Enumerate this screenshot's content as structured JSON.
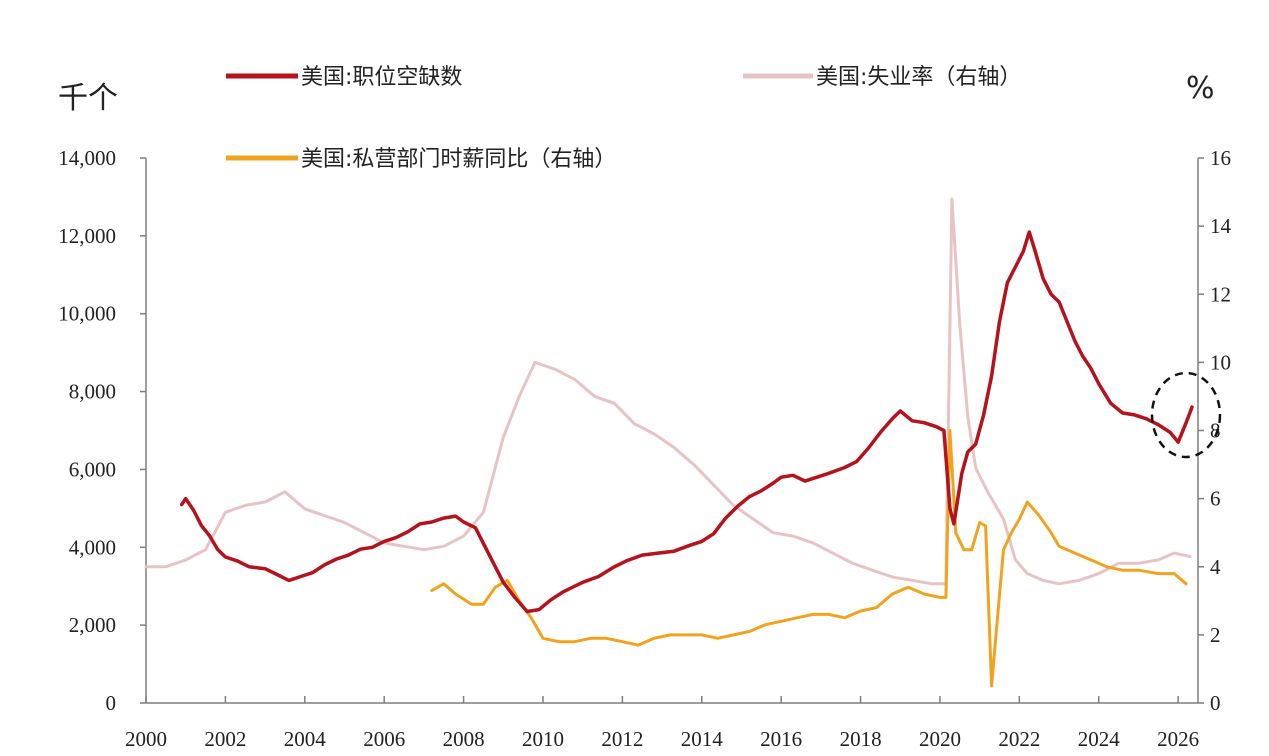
{
  "units": {
    "left": "千个",
    "right": "%"
  },
  "colors": {
    "job_openings": "#b5121b",
    "unemployment": "#e8c3c6",
    "wages": "#f2a31c",
    "axis": "#7f7f7f",
    "annotation": "#111111"
  },
  "chart_data": {
    "type": "line",
    "title": "",
    "xlabel": "",
    "ylabel_left": "千个",
    "ylabel_right": "%",
    "xlim": [
      2000,
      2026.5
    ],
    "ylim_left": [
      0,
      14000
    ],
    "ylim_right": [
      0,
      16
    ],
    "x_ticks": [
      "2000",
      "2002",
      "2004",
      "2006",
      "2008",
      "2010",
      "2012",
      "2014",
      "2016",
      "2018",
      "2020",
      "2022",
      "2024",
      "2026"
    ],
    "y_left_ticks": [
      "0",
      "2,000",
      "4,000",
      "6,000",
      "8,000",
      "10,000",
      "12,000",
      "14,000"
    ],
    "y_right_ticks": [
      "0",
      "2",
      "4",
      "6",
      "8",
      "10",
      "12",
      "14",
      "16"
    ],
    "grid": false,
    "legend_position": "top",
    "annotation": "dashed ellipse highlighting 2025-2026 job openings",
    "series": [
      {
        "name": "美国:职位空缺数",
        "axis": "left",
        "color": "#b5121b",
        "points": [
          [
            2000.9,
            5100
          ],
          [
            2001.0,
            5250
          ],
          [
            2001.2,
            4950
          ],
          [
            2001.4,
            4550
          ],
          [
            2001.6,
            4300
          ],
          [
            2001.8,
            3950
          ],
          [
            2002.0,
            3750
          ],
          [
            2002.3,
            3650
          ],
          [
            2002.6,
            3500
          ],
          [
            2003.0,
            3450
          ],
          [
            2003.3,
            3300
          ],
          [
            2003.6,
            3150
          ],
          [
            2003.9,
            3250
          ],
          [
            2004.2,
            3350
          ],
          [
            2004.5,
            3550
          ],
          [
            2004.8,
            3700
          ],
          [
            2005.1,
            3800
          ],
          [
            2005.4,
            3950
          ],
          [
            2005.7,
            4000
          ],
          [
            2006.0,
            4150
          ],
          [
            2006.3,
            4250
          ],
          [
            2006.6,
            4400
          ],
          [
            2006.9,
            4600
          ],
          [
            2007.2,
            4650
          ],
          [
            2007.5,
            4750
          ],
          [
            2007.8,
            4800
          ],
          [
            2008.0,
            4650
          ],
          [
            2008.3,
            4500
          ],
          [
            2008.5,
            4100
          ],
          [
            2008.8,
            3500
          ],
          [
            2009.0,
            3100
          ],
          [
            2009.3,
            2700
          ],
          [
            2009.6,
            2350
          ],
          [
            2009.9,
            2400
          ],
          [
            2010.2,
            2650
          ],
          [
            2010.5,
            2850
          ],
          [
            2010.8,
            3000
          ],
          [
            2011.0,
            3100
          ],
          [
            2011.4,
            3250
          ],
          [
            2011.8,
            3500
          ],
          [
            2012.1,
            3650
          ],
          [
            2012.5,
            3800
          ],
          [
            2012.9,
            3850
          ],
          [
            2013.3,
            3900
          ],
          [
            2013.7,
            4050
          ],
          [
            2014.0,
            4150
          ],
          [
            2014.3,
            4350
          ],
          [
            2014.6,
            4750
          ],
          [
            2014.9,
            5050
          ],
          [
            2015.2,
            5300
          ],
          [
            2015.5,
            5450
          ],
          [
            2015.8,
            5650
          ],
          [
            2016.0,
            5800
          ],
          [
            2016.3,
            5850
          ],
          [
            2016.6,
            5700
          ],
          [
            2016.9,
            5800
          ],
          [
            2017.2,
            5900
          ],
          [
            2017.6,
            6050
          ],
          [
            2017.9,
            6200
          ],
          [
            2018.2,
            6550
          ],
          [
            2018.5,
            6950
          ],
          [
            2018.8,
            7300
          ],
          [
            2019.0,
            7500
          ],
          [
            2019.3,
            7250
          ],
          [
            2019.6,
            7200
          ],
          [
            2019.9,
            7100
          ],
          [
            2020.1,
            7000
          ],
          [
            2020.25,
            5000
          ],
          [
            2020.35,
            4600
          ],
          [
            2020.55,
            5900
          ],
          [
            2020.7,
            6450
          ],
          [
            2020.9,
            6650
          ],
          [
            2021.1,
            7400
          ],
          [
            2021.3,
            8400
          ],
          [
            2021.5,
            9800
          ],
          [
            2021.7,
            10800
          ],
          [
            2021.9,
            11200
          ],
          [
            2022.1,
            11600
          ],
          [
            2022.25,
            12100
          ],
          [
            2022.4,
            11600
          ],
          [
            2022.6,
            10900
          ],
          [
            2022.8,
            10500
          ],
          [
            2023.0,
            10300
          ],
          [
            2023.2,
            9800
          ],
          [
            2023.4,
            9300
          ],
          [
            2023.6,
            8900
          ],
          [
            2023.8,
            8600
          ],
          [
            2024.0,
            8200
          ],
          [
            2024.3,
            7700
          ],
          [
            2024.6,
            7450
          ],
          [
            2024.9,
            7400
          ],
          [
            2025.2,
            7300
          ],
          [
            2025.5,
            7150
          ],
          [
            2025.8,
            6950
          ],
          [
            2026.0,
            6700
          ],
          [
            2026.2,
            7200
          ],
          [
            2026.35,
            7600
          ]
        ]
      },
      {
        "name": "美国:失业率（右轴）",
        "axis": "right",
        "color": "#e8c3c6",
        "points": [
          [
            2000.0,
            4.0
          ],
          [
            2000.5,
            4.0
          ],
          [
            2001.0,
            4.2
          ],
          [
            2001.5,
            4.5
          ],
          [
            2002.0,
            5.6
          ],
          [
            2002.5,
            5.8
          ],
          [
            2003.0,
            5.9
          ],
          [
            2003.5,
            6.2
          ],
          [
            2004.0,
            5.7
          ],
          [
            2004.5,
            5.5
          ],
          [
            2005.0,
            5.3
          ],
          [
            2005.5,
            5.0
          ],
          [
            2006.0,
            4.7
          ],
          [
            2006.5,
            4.6
          ],
          [
            2007.0,
            4.5
          ],
          [
            2007.5,
            4.6
          ],
          [
            2008.0,
            4.9
          ],
          [
            2008.5,
            5.6
          ],
          [
            2009.0,
            7.8
          ],
          [
            2009.4,
            9.0
          ],
          [
            2009.8,
            10.0
          ],
          [
            2010.3,
            9.8
          ],
          [
            2010.8,
            9.5
          ],
          [
            2011.3,
            9.0
          ],
          [
            2011.8,
            8.8
          ],
          [
            2012.3,
            8.2
          ],
          [
            2012.8,
            7.9
          ],
          [
            2013.3,
            7.5
          ],
          [
            2013.8,
            7.0
          ],
          [
            2014.3,
            6.4
          ],
          [
            2014.8,
            5.8
          ],
          [
            2015.3,
            5.4
          ],
          [
            2015.8,
            5.0
          ],
          [
            2016.3,
            4.9
          ],
          [
            2016.8,
            4.7
          ],
          [
            2017.3,
            4.4
          ],
          [
            2017.8,
            4.1
          ],
          [
            2018.3,
            3.9
          ],
          [
            2018.8,
            3.7
          ],
          [
            2019.3,
            3.6
          ],
          [
            2019.8,
            3.5
          ],
          [
            2020.15,
            3.5
          ],
          [
            2020.3,
            14.8
          ],
          [
            2020.5,
            11.1
          ],
          [
            2020.7,
            8.4
          ],
          [
            2020.9,
            6.9
          ],
          [
            2021.2,
            6.2
          ],
          [
            2021.6,
            5.4
          ],
          [
            2021.9,
            4.2
          ],
          [
            2022.2,
            3.8
          ],
          [
            2022.6,
            3.6
          ],
          [
            2023.0,
            3.5
          ],
          [
            2023.5,
            3.6
          ],
          [
            2024.0,
            3.8
          ],
          [
            2024.5,
            4.1
          ],
          [
            2025.0,
            4.1
          ],
          [
            2025.5,
            4.2
          ],
          [
            2025.9,
            4.4
          ],
          [
            2026.3,
            4.3
          ]
        ]
      },
      {
        "name": "美国:私营部门时薪同比（右轴）",
        "axis": "right",
        "color": "#f2a31c",
        "points": [
          [
            2007.2,
            3.3
          ],
          [
            2007.5,
            3.5
          ],
          [
            2007.8,
            3.2
          ],
          [
            2008.2,
            2.9
          ],
          [
            2008.5,
            2.9
          ],
          [
            2008.8,
            3.4
          ],
          [
            2009.1,
            3.6
          ],
          [
            2009.4,
            3.0
          ],
          [
            2009.7,
            2.5
          ],
          [
            2010.0,
            1.9
          ],
          [
            2010.4,
            1.8
          ],
          [
            2010.8,
            1.8
          ],
          [
            2011.2,
            1.9
          ],
          [
            2011.6,
            1.9
          ],
          [
            2012.0,
            1.8
          ],
          [
            2012.4,
            1.7
          ],
          [
            2012.8,
            1.9
          ],
          [
            2013.2,
            2.0
          ],
          [
            2013.6,
            2.0
          ],
          [
            2014.0,
            2.0
          ],
          [
            2014.4,
            1.9
          ],
          [
            2014.8,
            2.0
          ],
          [
            2015.2,
            2.1
          ],
          [
            2015.6,
            2.3
          ],
          [
            2016.0,
            2.4
          ],
          [
            2016.4,
            2.5
          ],
          [
            2016.8,
            2.6
          ],
          [
            2017.2,
            2.6
          ],
          [
            2017.6,
            2.5
          ],
          [
            2018.0,
            2.7
          ],
          [
            2018.4,
            2.8
          ],
          [
            2018.8,
            3.2
          ],
          [
            2019.2,
            3.4
          ],
          [
            2019.6,
            3.2
          ],
          [
            2020.0,
            3.1
          ],
          [
            2020.15,
            3.1
          ],
          [
            2020.25,
            8.0
          ],
          [
            2020.4,
            5.0
          ],
          [
            2020.6,
            4.5
          ],
          [
            2020.8,
            4.5
          ],
          [
            2021.0,
            5.3
          ],
          [
            2021.15,
            5.2
          ],
          [
            2021.3,
            0.5
          ],
          [
            2021.45,
            2.5
          ],
          [
            2021.6,
            4.5
          ],
          [
            2021.8,
            5.0
          ],
          [
            2022.0,
            5.4
          ],
          [
            2022.2,
            5.9
          ],
          [
            2022.5,
            5.5
          ],
          [
            2022.8,
            5.0
          ],
          [
            2023.0,
            4.6
          ],
          [
            2023.4,
            4.4
          ],
          [
            2023.8,
            4.2
          ],
          [
            2024.2,
            4.0
          ],
          [
            2024.6,
            3.9
          ],
          [
            2025.0,
            3.9
          ],
          [
            2025.5,
            3.8
          ],
          [
            2025.9,
            3.8
          ],
          [
            2026.2,
            3.5
          ]
        ]
      }
    ]
  }
}
